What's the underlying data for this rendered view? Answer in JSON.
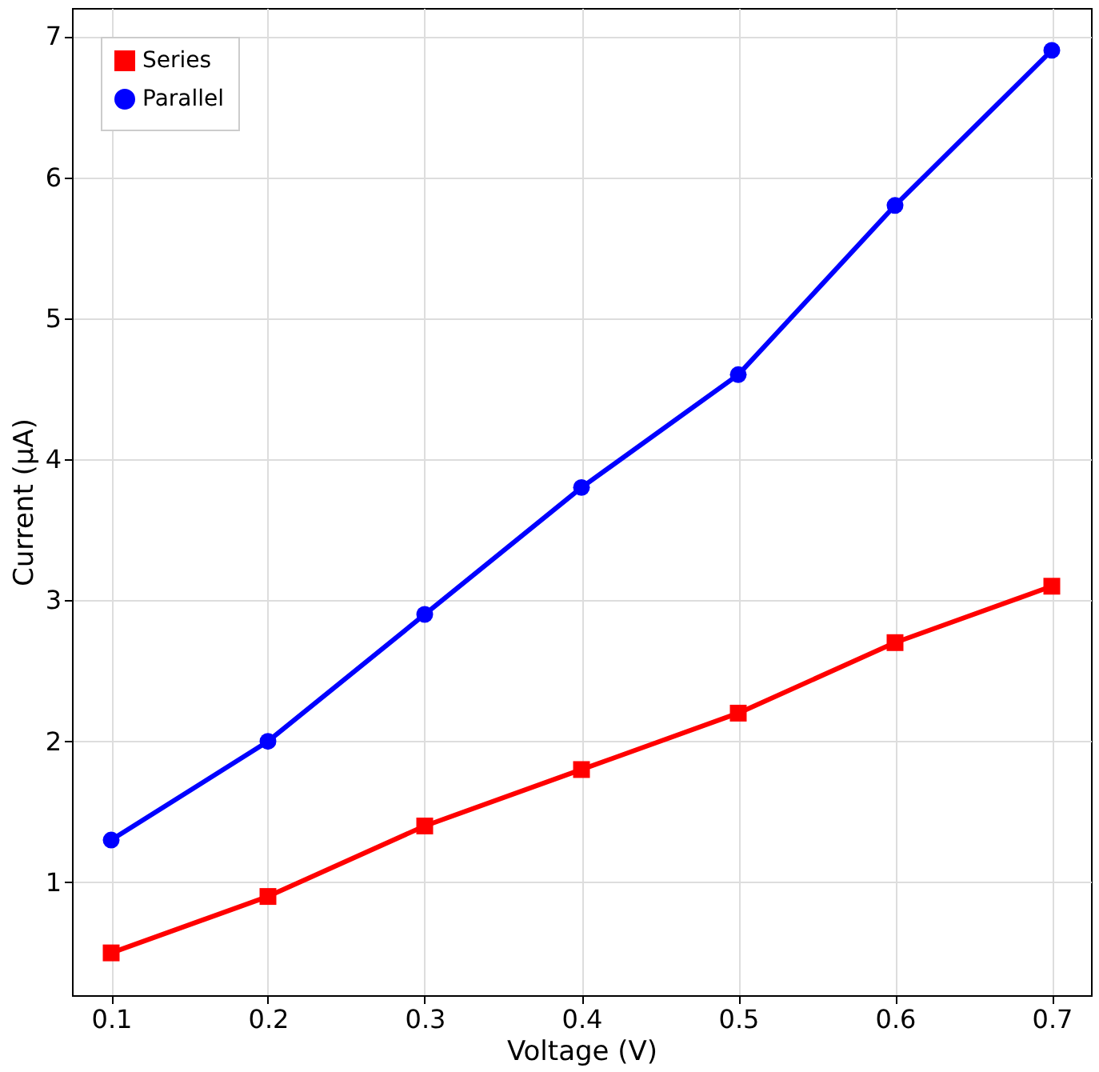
{
  "chart_data": {
    "type": "line",
    "xlabel": "Voltage (V)",
    "ylabel": "Current (μA)",
    "x": [
      0.1,
      0.2,
      0.3,
      0.4,
      0.5,
      0.6,
      0.7
    ],
    "series": [
      {
        "name": "Series",
        "color": "#ff0000",
        "marker": "square",
        "values": [
          0.5,
          0.9,
          1.4,
          1.8,
          2.2,
          2.7,
          3.1
        ]
      },
      {
        "name": "Parallel",
        "color": "#0000ff",
        "marker": "circle",
        "values": [
          1.3,
          2.0,
          2.9,
          3.8,
          4.6,
          5.8,
          6.9
        ]
      }
    ],
    "xlim": [
      0.075,
      0.725
    ],
    "xticks": [
      0.1,
      0.2,
      0.3,
      0.4,
      0.5,
      0.6,
      0.7
    ],
    "ylim": [
      0.2,
      7.2
    ],
    "yticks": [
      1,
      2,
      3,
      4,
      5,
      6,
      7
    ],
    "grid": true,
    "legend": "top left",
    "line_style": "solid"
  }
}
